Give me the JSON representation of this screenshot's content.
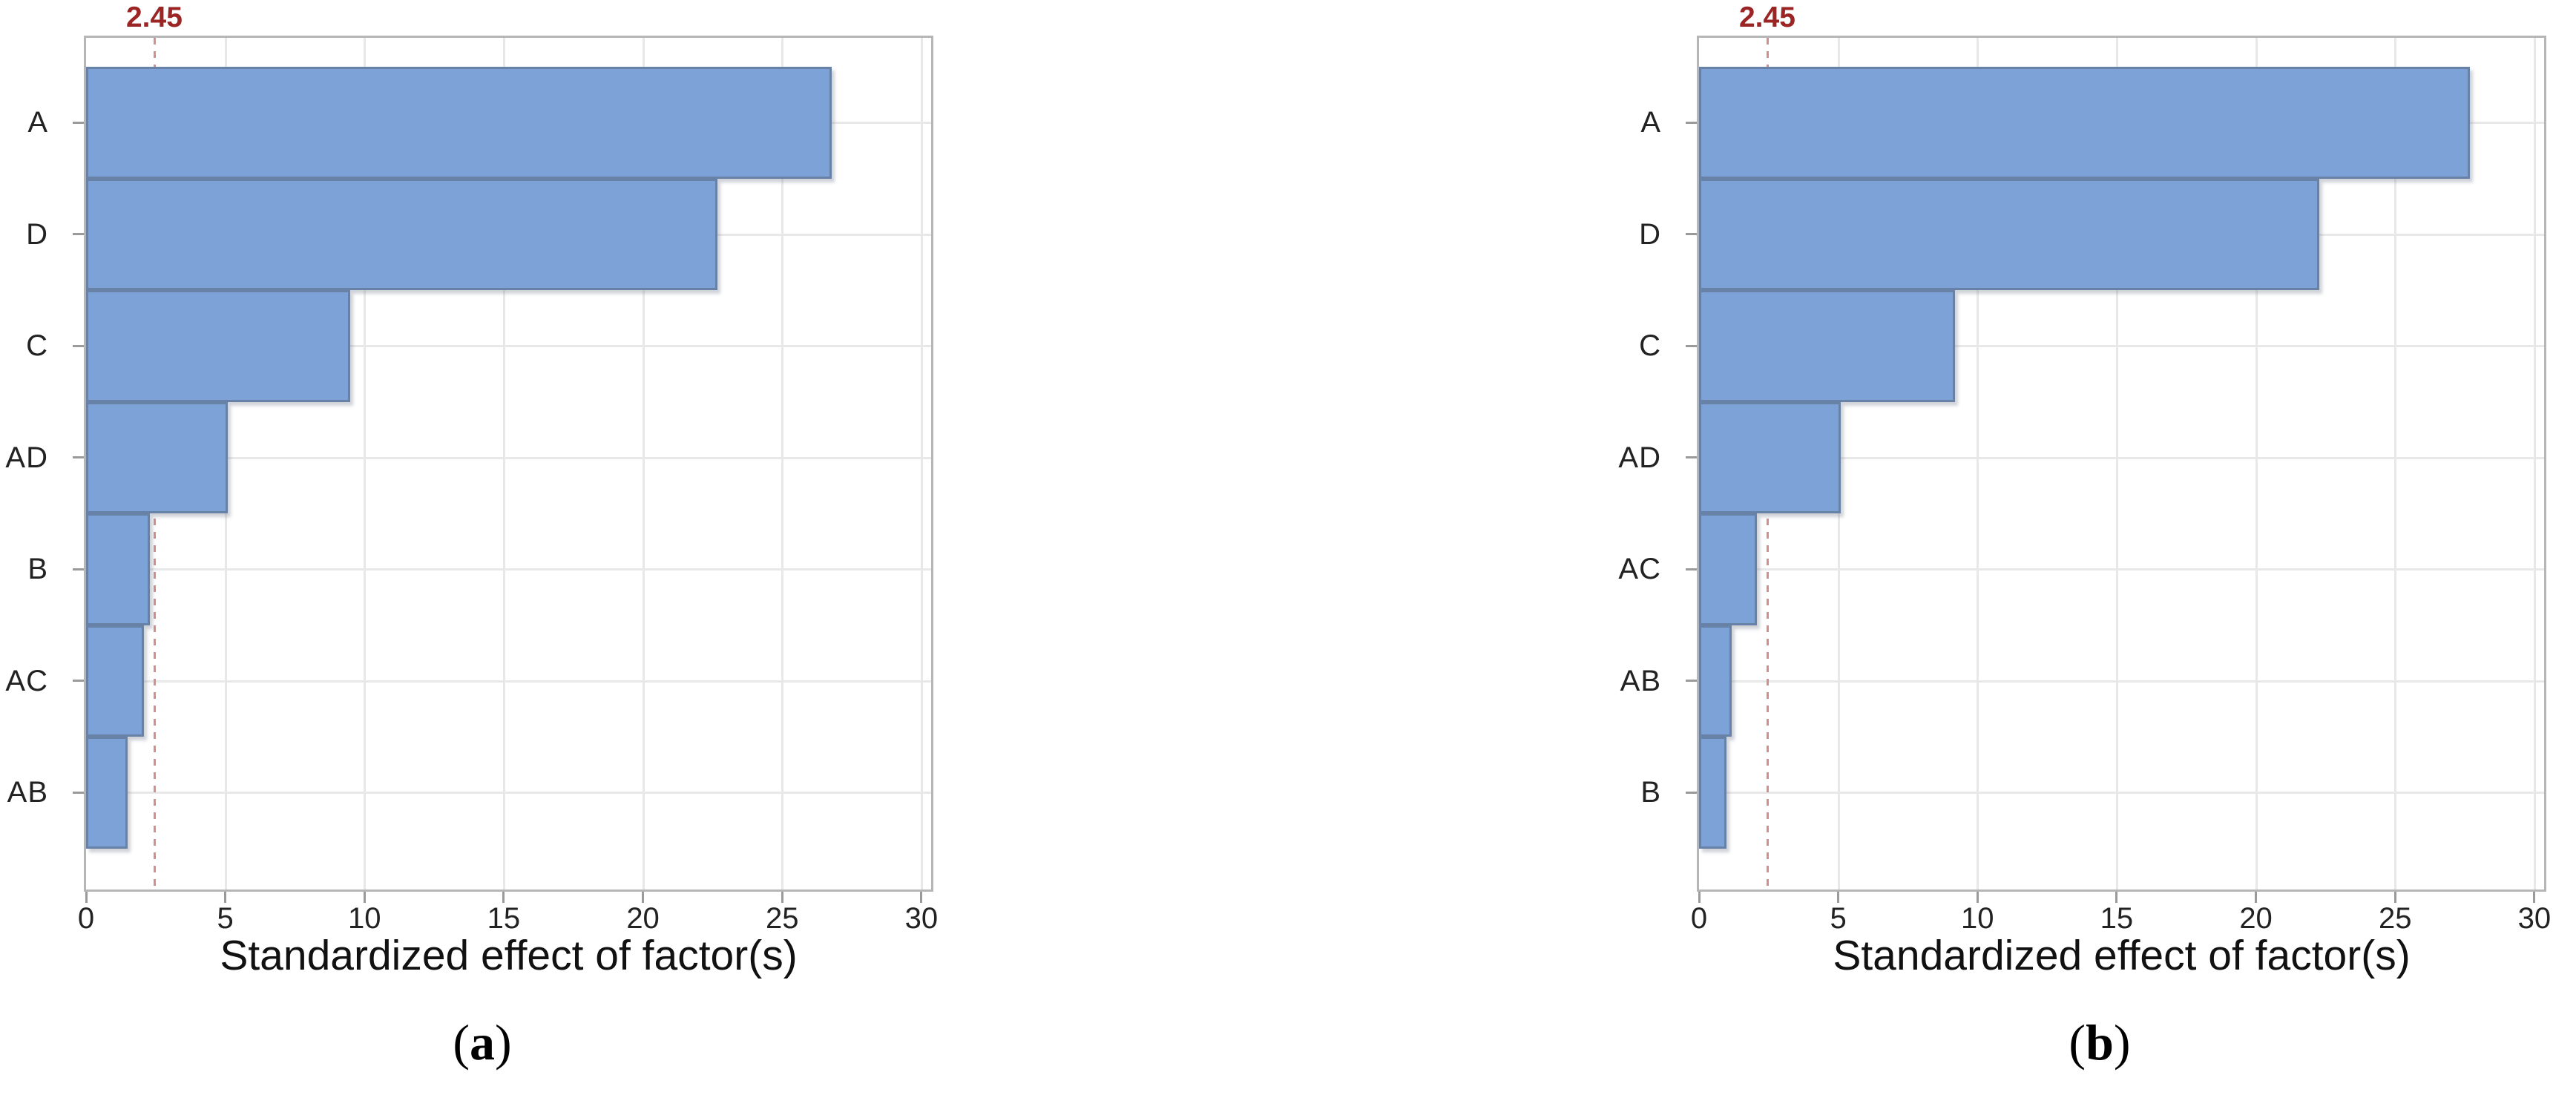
{
  "figure": {
    "background": "#ffffff",
    "colors": {
      "bar_fill": "#7ca2d8",
      "bar_border": "rgba(88,104,128,0.55)",
      "bar_shadow": "rgba(120,130,145,0.35)",
      "grid": "#e8e8e8",
      "plot_border": "#b6b6b6",
      "tick": "#9a9a9a",
      "ref_line": "#d28f8f",
      "ref_text": "#9b2525"
    }
  },
  "chart_data": [
    {
      "type": "bar",
      "orientation": "horizontal",
      "panel": "a",
      "caption": [
        "(",
        "a",
        ")"
      ],
      "title": "",
      "xlabel": "Standardized effect of factor(s)",
      "ylabel": "",
      "categories": [
        "A",
        "D",
        "C",
        "AD",
        "B",
        "AC",
        "AB"
      ],
      "values": [
        26.7,
        22.6,
        9.4,
        5.0,
        2.2,
        2.0,
        1.4
      ],
      "x_ticks": [
        "0",
        "5",
        "10",
        "15",
        "20",
        "25",
        "30"
      ],
      "x_tick_values": [
        0,
        5,
        10,
        15,
        20,
        25,
        30
      ],
      "xlim": [
        0,
        30
      ],
      "grid": true,
      "legend": "none",
      "reference_line": {
        "value": 2.45,
        "label": "2.45",
        "style": "dashed-red"
      }
    },
    {
      "type": "bar",
      "orientation": "horizontal",
      "panel": "b",
      "caption": [
        "(",
        "b",
        ")"
      ],
      "title": "",
      "xlabel": "Standardized effect of factor(s)",
      "ylabel": "",
      "categories": [
        "A",
        "D",
        "C",
        "AD",
        "AC",
        "AB",
        "B"
      ],
      "values": [
        27.6,
        22.2,
        9.1,
        5.0,
        2.0,
        1.1,
        0.9
      ],
      "x_ticks": [
        "0",
        "5",
        "10",
        "15",
        "20",
        "25",
        "30"
      ],
      "x_tick_values": [
        0,
        5,
        10,
        15,
        20,
        25,
        30
      ],
      "xlim": [
        0,
        30
      ],
      "grid": true,
      "legend": "none",
      "reference_line": {
        "value": 2.45,
        "label": "2.45",
        "style": "dashed-red"
      }
    }
  ]
}
